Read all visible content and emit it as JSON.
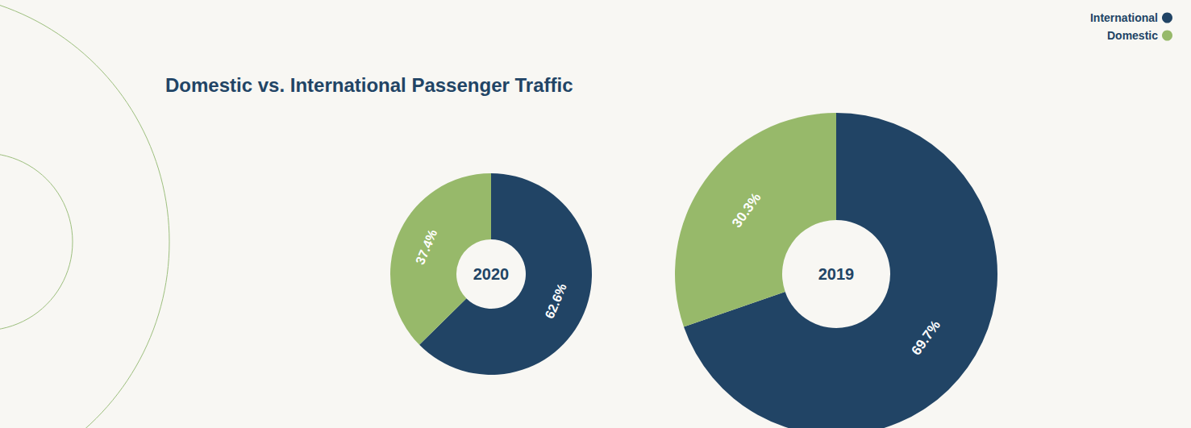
{
  "title": "Domestic vs. International Passenger Traffic",
  "legend": "top-right",
  "chart_data": [
    {
      "type": "pie",
      "title": "2020",
      "categories": [
        "International",
        "Domestic"
      ],
      "values": [
        62.6,
        37.4
      ],
      "value_labels": [
        "62.6%",
        "37.4%"
      ],
      "colors": [
        "#214465",
        "#97b96a"
      ],
      "data_labels": true
    },
    {
      "type": "pie",
      "title": "2019",
      "categories": [
        "International",
        "Domestic"
      ],
      "values": [
        69.7,
        30.3
      ],
      "value_labels": [
        "69.7%",
        "30.3%"
      ],
      "colors": [
        "#214465",
        "#97b96a"
      ],
      "data_labels": true
    }
  ]
}
